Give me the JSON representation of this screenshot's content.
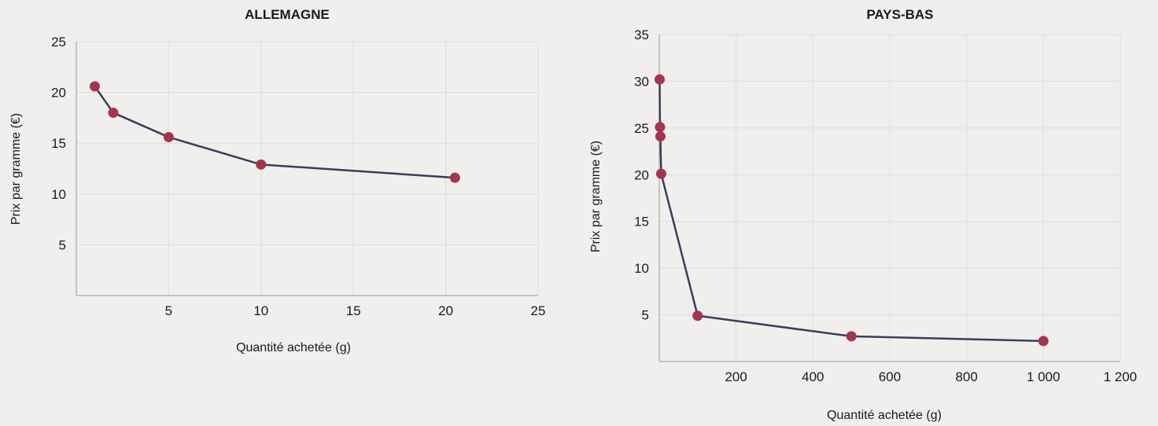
{
  "chart_data": [
    {
      "type": "line",
      "title": "ALLEMAGNE",
      "xlabel": "Quantité achetée (g)",
      "ylabel": "Prix par gramme (€)",
      "xlim": [
        0,
        25
      ],
      "ylim": [
        0,
        25
      ],
      "xticks": [
        5,
        10,
        15,
        20,
        25
      ],
      "xtick_labels": [
        "5",
        "10",
        "15",
        "20",
        "25"
      ],
      "yticks": [
        5,
        10,
        15,
        20,
        25
      ],
      "ytick_labels": [
        "5",
        "10",
        "15",
        "20",
        "25"
      ],
      "grid": true,
      "line_color": "#3f3a5e",
      "marker_color": "#a33550",
      "series": [
        {
          "x": [
            1,
            2,
            5,
            10,
            20.5
          ],
          "y": [
            20.6,
            18.0,
            15.6,
            12.9,
            11.6
          ]
        }
      ]
    },
    {
      "type": "line",
      "title": "PAYS-BAS",
      "xlabel": "Quantité achetée (g)",
      "ylabel": "Prix par gramme (€)",
      "xlim": [
        0,
        1200
      ],
      "ylim": [
        0,
        35
      ],
      "xticks": [
        200,
        400,
        600,
        800,
        1000,
        1200
      ],
      "xtick_labels": [
        "200",
        "400",
        "600",
        "800",
        "1 000",
        "1 200"
      ],
      "yticks": [
        5,
        10,
        15,
        20,
        25,
        30,
        35
      ],
      "ytick_labels": [
        "5",
        "10",
        "15",
        "20",
        "25",
        "30",
        "35"
      ],
      "grid": true,
      "line_color": "#3f3a5e",
      "marker_color": "#a33550",
      "series": [
        {
          "x": [
            1,
            2,
            3,
            5,
            100,
            500,
            1000
          ],
          "y": [
            30.2,
            25.1,
            24.1,
            20.1,
            4.9,
            2.7,
            2.2
          ]
        }
      ]
    }
  ]
}
